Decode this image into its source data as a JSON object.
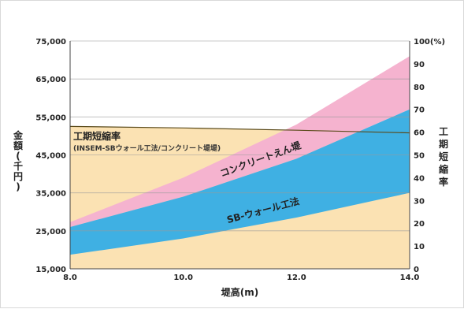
{
  "chart_data": {
    "type": "area",
    "x": [
      8.0,
      10.0,
      12.0,
      14.0
    ],
    "xlim": [
      8.0,
      14.0
    ],
    "xticks": [
      "8.0",
      "10.0",
      "12.0",
      "14.0"
    ],
    "xlabel": "堤高(m)",
    "ylim": [
      15000,
      75000
    ],
    "yticks": [
      "15,000",
      "25,000",
      "35,000",
      "45,000",
      "55,000",
      "65,000",
      "75,000"
    ],
    "ylabel": "金額(千円)",
    "y2lim": [
      0,
      100
    ],
    "y2ticks": [
      "0",
      "10",
      "20",
      "30",
      "40",
      "50",
      "60",
      "70",
      "80",
      "90",
      "100"
    ],
    "y2label": "工期短縮率",
    "y2unit": "(%)",
    "bands": [
      {
        "name": "工期短縮率",
        "note": "(INSEM-SBウォール工法/コンクリート堤堤)",
        "color": "#fbe2b3",
        "values": [
          52500,
          52100,
          51500,
          50800
        ]
      },
      {
        "name": "SB-ウォール工法",
        "color": "#3fb0e3",
        "lower": [
          18700,
          23000,
          28500,
          35000
        ],
        "upper": [
          26000,
          34000,
          44000,
          57000
        ]
      },
      {
        "name": "コンクリートえん堤",
        "color": "#f5b3cf",
        "lower": [
          26000,
          34000,
          44000,
          57000
        ],
        "upper": [
          27300,
          39000,
          53000,
          71000
        ]
      }
    ],
    "grid": true
  }
}
